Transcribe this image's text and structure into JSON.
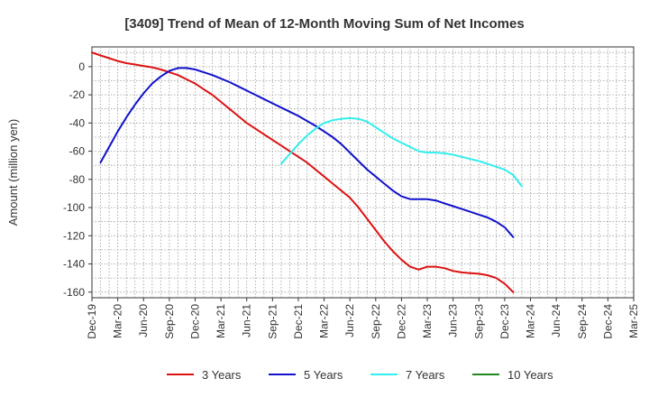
{
  "chart_data": {
    "type": "line",
    "title": "[3409]  Trend of Mean of 12-Month Moving Sum of Net Incomes",
    "xlabel": "",
    "ylabel": "Amount (million yen)",
    "ylim": [
      -164,
      14
    ],
    "yticks": [
      0,
      -20,
      -40,
      -60,
      -80,
      -100,
      -120,
      -140,
      -160
    ],
    "xticks": [
      "Dec-19",
      "Mar-20",
      "Jun-20",
      "Sep-20",
      "Dec-20",
      "Mar-21",
      "Jun-21",
      "Sep-21",
      "Dec-21",
      "Mar-22",
      "Jun-22",
      "Sep-22",
      "Dec-22",
      "Mar-23",
      "Jun-23",
      "Sep-23",
      "Dec-23",
      "Mar-24",
      "Jun-24",
      "Sep-24",
      "Dec-24",
      "Mar-25"
    ],
    "grid": true,
    "legend_position": "bottom",
    "series": [
      {
        "name": "3 Years",
        "color": "#dd1111",
        "points": [
          [
            0,
            10
          ],
          [
            1,
            8
          ],
          [
            2,
            6
          ],
          [
            3,
            4
          ],
          [
            4,
            2.5
          ],
          [
            5,
            1.5
          ],
          [
            6,
            0.5
          ],
          [
            7,
            -0.5
          ],
          [
            8,
            -2
          ],
          [
            9,
            -4
          ],
          [
            10,
            -6
          ],
          [
            11,
            -9
          ],
          [
            12,
            -12
          ],
          [
            13,
            -16
          ],
          [
            14,
            -20
          ],
          [
            15,
            -25
          ],
          [
            16,
            -30
          ],
          [
            17,
            -35
          ],
          [
            18,
            -40
          ],
          [
            19,
            -44
          ],
          [
            20,
            -48
          ],
          [
            21,
            -52
          ],
          [
            22,
            -56
          ],
          [
            23,
            -60
          ],
          [
            24,
            -64
          ],
          [
            25,
            -68
          ],
          [
            26,
            -73
          ],
          [
            27,
            -78
          ],
          [
            28,
            -83
          ],
          [
            29,
            -88
          ],
          [
            30,
            -93
          ],
          [
            31,
            -100
          ],
          [
            32,
            -108
          ],
          [
            33,
            -116
          ],
          [
            34,
            -124
          ],
          [
            35,
            -131
          ],
          [
            36,
            -137
          ],
          [
            37,
            -142
          ],
          [
            38,
            -144
          ],
          [
            39,
            -142
          ],
          [
            40,
            -142
          ],
          [
            41,
            -143
          ],
          [
            42,
            -145
          ],
          [
            43,
            -146
          ],
          [
            44,
            -146.5
          ],
          [
            45,
            -147
          ],
          [
            46,
            -148
          ],
          [
            47,
            -150
          ],
          [
            48,
            -154
          ],
          [
            49,
            -160
          ]
        ]
      },
      {
        "name": "5 Years",
        "color": "#1111cc",
        "points": [
          [
            1,
            -68
          ],
          [
            2,
            -57
          ],
          [
            3,
            -46
          ],
          [
            4,
            -36
          ],
          [
            5,
            -27
          ],
          [
            6,
            -19
          ],
          [
            7,
            -12
          ],
          [
            8,
            -7
          ],
          [
            9,
            -3
          ],
          [
            10,
            -1
          ],
          [
            11,
            -1
          ],
          [
            12,
            -2
          ],
          [
            13,
            -4
          ],
          [
            14,
            -6
          ],
          [
            15,
            -8.5
          ],
          [
            16,
            -11
          ],
          [
            17,
            -14
          ],
          [
            18,
            -17
          ],
          [
            19,
            -20
          ],
          [
            20,
            -23
          ],
          [
            21,
            -26
          ],
          [
            22,
            -29
          ],
          [
            23,
            -32
          ],
          [
            24,
            -35
          ],
          [
            25,
            -38.5
          ],
          [
            26,
            -42
          ],
          [
            27,
            -46
          ],
          [
            28,
            -50
          ],
          [
            29,
            -55
          ],
          [
            30,
            -61
          ],
          [
            31,
            -67
          ],
          [
            32,
            -73
          ],
          [
            33,
            -78
          ],
          [
            34,
            -83
          ],
          [
            35,
            -88
          ],
          [
            36,
            -92
          ],
          [
            37,
            -94
          ],
          [
            38,
            -94
          ],
          [
            39,
            -94
          ],
          [
            40,
            -95
          ],
          [
            41,
            -97
          ],
          [
            42,
            -99
          ],
          [
            43,
            -101
          ],
          [
            44,
            -103
          ],
          [
            45,
            -105
          ],
          [
            46,
            -107
          ],
          [
            47,
            -110
          ],
          [
            48,
            -114
          ],
          [
            49,
            -121
          ]
        ]
      },
      {
        "name": "7 Years",
        "color": "#33eeee",
        "points": [
          [
            22,
            -69
          ],
          [
            23,
            -62
          ],
          [
            24,
            -55
          ],
          [
            25,
            -49
          ],
          [
            26,
            -44
          ],
          [
            27,
            -40
          ],
          [
            28,
            -38
          ],
          [
            29,
            -37
          ],
          [
            30,
            -36.5
          ],
          [
            31,
            -37
          ],
          [
            32,
            -39
          ],
          [
            33,
            -43
          ],
          [
            34,
            -47
          ],
          [
            35,
            -51
          ],
          [
            36,
            -54
          ],
          [
            37,
            -57
          ],
          [
            38,
            -60
          ],
          [
            39,
            -61
          ],
          [
            40,
            -61
          ],
          [
            41,
            -61.5
          ],
          [
            42,
            -62.5
          ],
          [
            43,
            -64
          ],
          [
            44,
            -65.5
          ],
          [
            45,
            -67
          ],
          [
            46,
            -69
          ],
          [
            47,
            -71
          ],
          [
            48,
            -73
          ],
          [
            49,
            -77
          ],
          [
            50,
            -85
          ]
        ]
      },
      {
        "name": "10 Years",
        "color": "#228822",
        "points": []
      }
    ]
  }
}
